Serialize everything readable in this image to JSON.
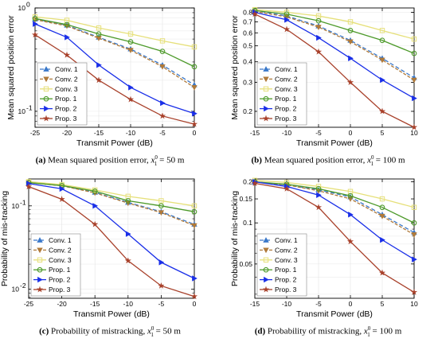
{
  "captions": [
    {
      "label": "(a)",
      "text": "Mean squared position error,",
      "math": "x",
      "sub": "1",
      "sup": "0",
      "rest": " = 50 m"
    },
    {
      "label": "(b)",
      "text": "Mean squared position error,",
      "math": "x",
      "sub": "1",
      "sup": "0",
      "rest": " = 100 m"
    },
    {
      "label": "(c)",
      "text": "Probability of mistracking,",
      "math": "x",
      "sub": "1",
      "sup": "0",
      "rest": " = 50 m"
    },
    {
      "label": "(d)",
      "text": "Probability of mistracking,",
      "math": "x",
      "sub": "1",
      "sup": "0",
      "rest": " = 100 m"
    }
  ],
  "styles": {
    "Conv. 1": {
      "color": "#3a78c9",
      "marker": "triangle",
      "dash": "5,3"
    },
    "Conv. 2": {
      "color": "#b07a3a",
      "marker": "triangle-down",
      "dash": "4,2"
    },
    "Conv. 3": {
      "color": "#e6e07a",
      "marker": "square-open",
      "dash": ""
    },
    "Prop. 1": {
      "color": "#4d9a2a",
      "marker": "circle-open",
      "dash": ""
    },
    "Prop. 2": {
      "color": "#1a2fe8",
      "marker": "triangle-right",
      "dash": ""
    },
    "Prop. 3": {
      "color": "#a8402a",
      "marker": "star",
      "dash": ""
    }
  },
  "chart_data": [
    {
      "type": "line",
      "xlabel": "Transmit Power (dB)",
      "ylabel": "Mean squared position error",
      "x": [
        -25,
        -20,
        -15,
        -10,
        -5,
        0
      ],
      "xlim": [
        -25,
        0
      ],
      "xticks": [
        "-25",
        "-20",
        "-15",
        "-10",
        "-5",
        "0"
      ],
      "yscale": "log",
      "ylim": [
        0.07,
        1.0
      ],
      "yticks": [
        {
          "v": 0.1,
          "label": "10",
          "exp": "-1"
        },
        {
          "v": 1.0,
          "label": "10",
          "exp": "0"
        }
      ],
      "legend_position": "bottom-left",
      "series": [
        {
          "name": "Conv. 1",
          "values": [
            0.78,
            0.68,
            0.52,
            0.4,
            0.28,
            0.18
          ]
        },
        {
          "name": "Conv. 2",
          "values": [
            0.77,
            0.67,
            0.51,
            0.39,
            0.27,
            0.17
          ]
        },
        {
          "name": "Conv. 3",
          "values": [
            0.82,
            0.76,
            0.64,
            0.56,
            0.48,
            0.42
          ]
        },
        {
          "name": "Prop. 1",
          "values": [
            0.79,
            0.69,
            0.56,
            0.47,
            0.38,
            0.27
          ]
        },
        {
          "name": "Prop. 2",
          "values": [
            0.7,
            0.52,
            0.28,
            0.17,
            0.12,
            0.095
          ]
        },
        {
          "name": "Prop. 3",
          "values": [
            0.55,
            0.35,
            0.2,
            0.13,
            0.09,
            0.075
          ]
        }
      ]
    },
    {
      "type": "line",
      "xlabel": "Transmit Power (dB)",
      "ylabel": "Mean squared position error",
      "x": [
        -15,
        -10,
        -5,
        0,
        5,
        10
      ],
      "xlim": [
        -15,
        10
      ],
      "xticks": [
        "-15",
        "-10",
        "-5",
        "0",
        "5",
        "10"
      ],
      "yscale": "log",
      "ylim": [
        0.16,
        0.85
      ],
      "yticks": [
        {
          "v": 0.2,
          "label": "0.2"
        },
        {
          "v": 0.3,
          "label": "0.3"
        },
        {
          "v": 0.4,
          "label": "0.4"
        },
        {
          "v": 0.5,
          "label": "0.5"
        },
        {
          "v": 0.6,
          "label": "0.6"
        },
        {
          "v": 0.7,
          "label": "0.7"
        },
        {
          "v": 0.8,
          "label": "0.8"
        }
      ],
      "legend_position": "bottom-left",
      "series": [
        {
          "name": "Conv. 1",
          "values": [
            0.82,
            0.76,
            0.66,
            0.54,
            0.42,
            0.32
          ]
        },
        {
          "name": "Conv. 2",
          "values": [
            0.81,
            0.75,
            0.65,
            0.53,
            0.41,
            0.31
          ]
        },
        {
          "name": "Conv. 3",
          "values": [
            0.83,
            0.8,
            0.76,
            0.7,
            0.62,
            0.55
          ]
        },
        {
          "name": "Prop. 1",
          "values": [
            0.82,
            0.78,
            0.71,
            0.62,
            0.54,
            0.45
          ]
        },
        {
          "name": "Prop. 2",
          "values": [
            0.8,
            0.72,
            0.56,
            0.42,
            0.31,
            0.24
          ]
        },
        {
          "name": "Prop. 3",
          "values": [
            0.78,
            0.63,
            0.46,
            0.3,
            0.2,
            0.16
          ]
        }
      ]
    },
    {
      "type": "line",
      "xlabel": "Transmit Power (dB)",
      "ylabel": "Probability of mis-tracking",
      "x": [
        -25,
        -20,
        -15,
        -10,
        -5,
        0
      ],
      "xlim": [
        -25,
        0
      ],
      "xticks": [
        "-25",
        "-20",
        "-15",
        "-10",
        "-5",
        "0"
      ],
      "yscale": "log",
      "ylim": [
        0.0078,
        0.21
      ],
      "yticks": [
        {
          "v": 0.01,
          "label": "10",
          "exp": "-2"
        },
        {
          "v": 0.1,
          "label": "10",
          "exp": "-1"
        }
      ],
      "legend_position": "bottom-left",
      "series": [
        {
          "name": "Conv. 1",
          "values": [
            0.19,
            0.175,
            0.145,
            0.11,
            0.085,
            0.06
          ]
        },
        {
          "name": "Conv. 2",
          "values": [
            0.19,
            0.174,
            0.143,
            0.108,
            0.083,
            0.058
          ]
        },
        {
          "name": "Conv. 3",
          "values": [
            0.195,
            0.18,
            0.155,
            0.13,
            0.115,
            0.1
          ]
        },
        {
          "name": "Prop. 1",
          "values": [
            0.19,
            0.175,
            0.15,
            0.115,
            0.1,
            0.085
          ]
        },
        {
          "name": "Prop. 2",
          "values": [
            0.185,
            0.16,
            0.1,
            0.046,
            0.021,
            0.0135
          ]
        },
        {
          "name": "Prop. 3",
          "values": [
            0.17,
            0.12,
            0.06,
            0.022,
            0.011,
            0.0082
          ]
        }
      ]
    },
    {
      "type": "line",
      "xlabel": "Transmit Power (dB)",
      "ylabel": "Probability of mis-tracking",
      "x": [
        -15,
        -10,
        -5,
        0,
        5,
        10
      ],
      "xlim": [
        -15,
        10
      ],
      "xticks": [
        "-15",
        "-10",
        "-5",
        "0",
        "5",
        "10"
      ],
      "yscale": "log",
      "ylim": [
        0.028,
        0.21
      ],
      "yticks": [
        {
          "v": 0.05,
          "label": "0.05"
        },
        {
          "v": 0.1,
          "label": "0.1"
        },
        {
          "v": 0.15,
          "label": "0.15"
        },
        {
          "v": 0.2,
          "label": "0.2"
        }
      ],
      "legend_position": "bottom-left",
      "series": [
        {
          "name": "Conv. 1",
          "values": [
            0.2,
            0.19,
            0.175,
            0.155,
            0.115,
            0.085
          ]
        },
        {
          "name": "Conv. 2",
          "values": [
            0.2,
            0.19,
            0.172,
            0.15,
            0.112,
            0.082
          ]
        },
        {
          "name": "Conv. 3",
          "values": [
            0.205,
            0.198,
            0.185,
            0.17,
            0.15,
            0.13
          ]
        },
        {
          "name": "Prop. 1",
          "values": [
            0.2,
            0.192,
            0.178,
            0.158,
            0.13,
            0.1
          ]
        },
        {
          "name": "Prop. 2",
          "values": [
            0.2,
            0.185,
            0.16,
            0.115,
            0.075,
            0.054
          ]
        },
        {
          "name": "Prop. 3",
          "values": [
            0.195,
            0.178,
            0.13,
            0.073,
            0.043,
            0.031
          ]
        }
      ]
    }
  ]
}
